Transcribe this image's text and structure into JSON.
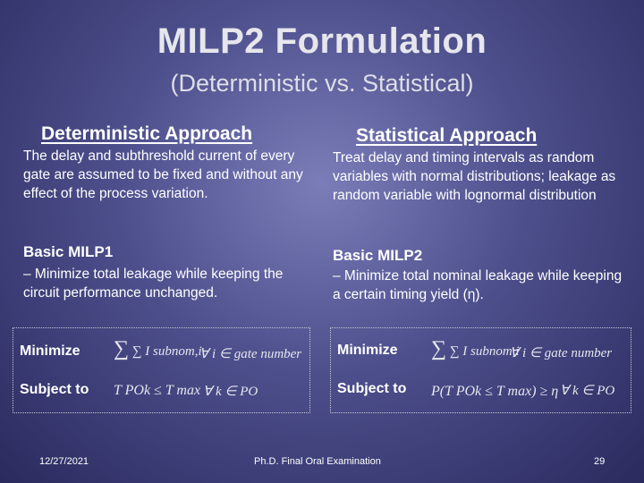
{
  "slide": {
    "title": "MILP2 Formulation",
    "subtitle": "(Deterministic vs. Statistical)"
  },
  "left": {
    "heading": "Deterministic Approach",
    "description": "The delay and subthreshold current of every gate are assumed to be fixed and without any effect of the process variation.",
    "basic_title": "Basic MILP1",
    "basic_desc": "– Minimize total leakage while keeping the circuit performance unchanged.",
    "formula": {
      "minimize_label": "Minimize",
      "subject_label": "Subject to",
      "objective": "∑ I subnom,i",
      "objective_domain": "∀ i ∈ gate number",
      "constraint": "T POk ≤ T max",
      "constraint_domain": "∀ k ∈ PO"
    }
  },
  "right": {
    "heading": "Statistical Approach",
    "description": "Treat delay and timing intervals as random variables with normal distributions; leakage as random variable with lognormal distribution",
    "basic_title": "Basic MILP2",
    "basic_desc": "– Minimize total nominal leakage while keeping a certain timing yield (η).",
    "formula": {
      "minimize_label": "Minimize",
      "subject_label": "Subject to",
      "objective": "∑ I subnom,i",
      "objective_domain": "∀ i ∈ gate number",
      "constraint": "P(T POk ≤ T max) ≥ η",
      "constraint_domain": "∀ k ∈ PO"
    }
  },
  "footer": {
    "date": "12/27/2021",
    "center": "Ph.D. Final Oral Examination",
    "page": "29"
  }
}
